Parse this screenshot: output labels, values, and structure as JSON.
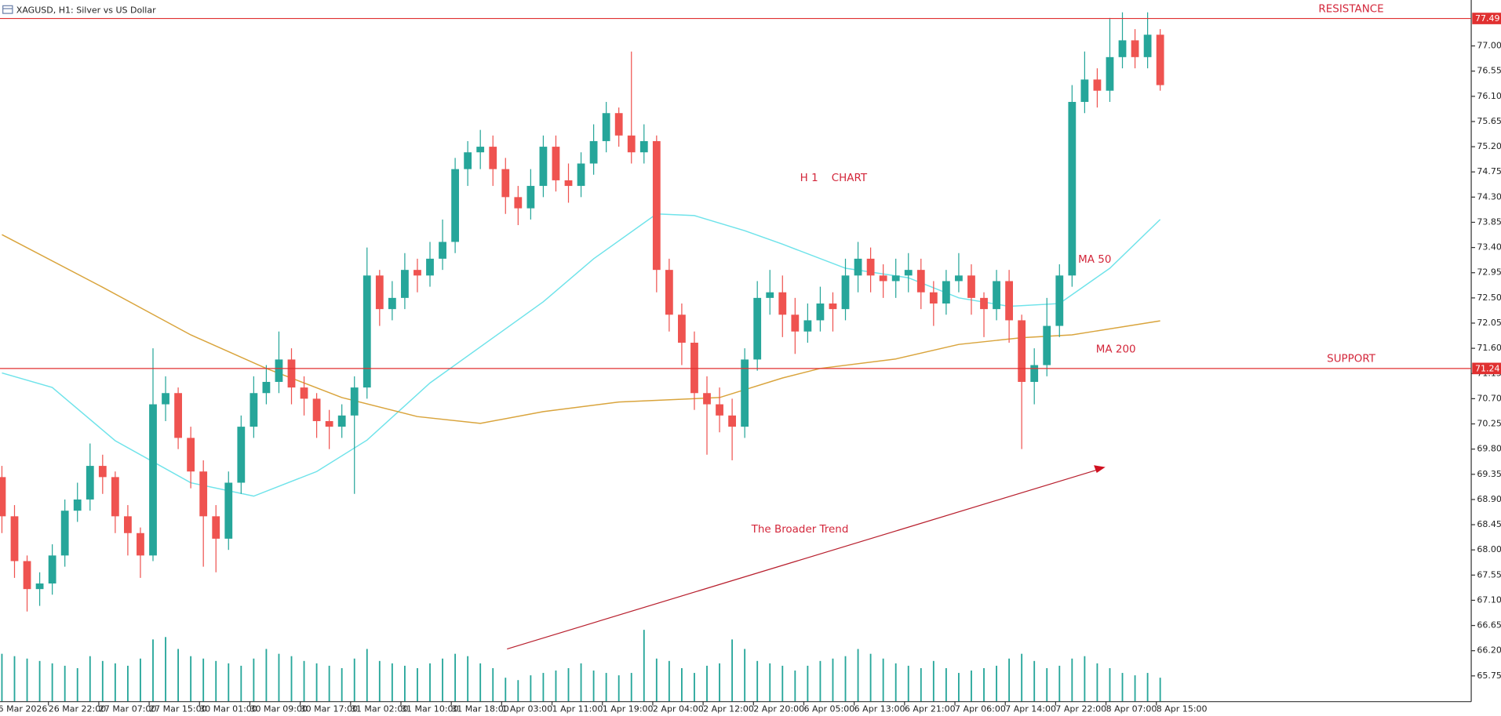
{
  "chart_data": {
    "type": "candlestick",
    "title": "XAGUSD, H1:  Silver vs US Dollar",
    "categories": [
      "6 Mar 2026",
      null,
      null,
      null,
      "26 Mar 22:00",
      null,
      null,
      null,
      "27 Mar 07:00",
      null,
      null,
      null,
      "27 Mar 15:00",
      null,
      null,
      null,
      "30 Mar 01:00",
      null,
      null,
      null,
      "30 Mar 09:00",
      null,
      null,
      null,
      "30 Mar 17:00",
      null,
      null,
      null,
      "31 Mar 02:00",
      null,
      null,
      null,
      "31 Mar 10:00",
      null,
      null,
      null,
      "31 Mar 18:00",
      null,
      null,
      null,
      "1 Apr 03:00",
      null,
      null,
      null,
      "1 Apr 11:00",
      null,
      null,
      null,
      "1 Apr 19:00",
      null,
      null,
      null,
      "2 Apr 04:00",
      null,
      null,
      null,
      "2 Apr 12:00",
      null,
      null,
      null,
      "2 Apr 20:00",
      null,
      null,
      null,
      "6 Apr 05:00",
      null,
      null,
      null,
      "6 Apr 13:00",
      null,
      null,
      null,
      "6 Apr 21:00",
      null,
      null,
      null,
      "7 Apr 06:00",
      null,
      null,
      null,
      "7 Apr 14:00",
      null,
      null,
      null,
      "7 Apr 22:00",
      null,
      null,
      null,
      "8 Apr 07:00",
      null,
      null,
      null,
      "8 Apr 15:00"
    ],
    "open": [
      69.3,
      68.6,
      67.8,
      67.3,
      67.4,
      67.9,
      68.7,
      68.9,
      69.5,
      69.3,
      68.6,
      68.3,
      67.9,
      70.6,
      70.8,
      70.0,
      69.4,
      68.6,
      68.2,
      69.2,
      70.2,
      70.8,
      71.0,
      71.4,
      70.9,
      70.7,
      70.3,
      70.2,
      70.4,
      70.9,
      72.9,
      72.3,
      72.5,
      73.0,
      72.9,
      73.2,
      73.5,
      74.8,
      75.1,
      75.2,
      74.8,
      74.3,
      74.1,
      74.5,
      75.2,
      74.6,
      74.5,
      74.9,
      75.3,
      75.8,
      75.4,
      75.1,
      75.3,
      73.0,
      72.2,
      71.7,
      70.8,
      70.6,
      70.4,
      70.2,
      71.4,
      72.5,
      72.6,
      72.2,
      71.9,
      72.1,
      72.4,
      72.3,
      72.9,
      73.2,
      72.9,
      72.8,
      72.9,
      73.0,
      72.6,
      72.4,
      72.8,
      72.9,
      72.5,
      72.3,
      72.8,
      72.1,
      71.0,
      71.3,
      72.0,
      72.9,
      76.0,
      76.4,
      76.2,
      76.8,
      77.1,
      76.8,
      77.2
    ],
    "high": [
      69.5,
      68.8,
      67.9,
      67.6,
      68.1,
      68.9,
      69.2,
      69.9,
      69.7,
      69.4,
      68.8,
      68.4,
      71.6,
      71.1,
      70.9,
      70.2,
      69.6,
      68.8,
      69.4,
      70.4,
      71.1,
      71.3,
      71.9,
      71.6,
      71.1,
      70.8,
      70.5,
      70.6,
      71.1,
      73.4,
      73.0,
      72.8,
      73.3,
      73.2,
      73.5,
      73.9,
      75.0,
      75.3,
      75.5,
      75.4,
      75.0,
      74.5,
      74.8,
      75.4,
      75.4,
      74.9,
      75.1,
      75.6,
      76.0,
      75.9,
      76.9,
      75.6,
      75.4,
      73.2,
      72.4,
      71.9,
      71.1,
      70.9,
      70.7,
      71.6,
      72.8,
      73.0,
      72.9,
      72.5,
      72.4,
      72.7,
      72.6,
      73.2,
      73.5,
      73.4,
      73.1,
      73.2,
      73.3,
      73.2,
      72.8,
      73.0,
      73.3,
      73.1,
      72.6,
      73.0,
      73.0,
      72.2,
      71.6,
      72.5,
      73.1,
      76.3,
      76.9,
      76.6,
      77.5,
      77.6,
      77.3,
      77.6,
      77.3
    ],
    "low": [
      68.3,
      67.5,
      66.9,
      67.0,
      67.2,
      67.7,
      68.5,
      68.7,
      69.0,
      68.3,
      67.9,
      67.5,
      67.8,
      70.3,
      69.8,
      69.1,
      67.7,
      67.6,
      68.0,
      69.0,
      70.0,
      70.6,
      70.8,
      70.6,
      70.4,
      70.0,
      69.8,
      70.0,
      69.0,
      70.7,
      72.0,
      72.1,
      72.3,
      72.6,
      72.7,
      73.0,
      73.3,
      74.5,
      74.8,
      74.5,
      74.0,
      73.8,
      73.9,
      74.3,
      74.4,
      74.2,
      74.3,
      74.7,
      75.1,
      75.2,
      74.9,
      74.9,
      72.6,
      71.9,
      71.3,
      70.5,
      69.7,
      70.1,
      69.6,
      70.0,
      71.2,
      72.2,
      71.8,
      71.5,
      71.7,
      71.9,
      71.9,
      72.1,
      72.6,
      72.6,
      72.5,
      72.5,
      72.6,
      72.3,
      72.0,
      72.2,
      72.6,
      72.2,
      71.8,
      72.1,
      71.7,
      69.8,
      70.6,
      71.1,
      71.8,
      72.7,
      75.8,
      75.9,
      76.0,
      76.6,
      76.6,
      76.6,
      76.2
    ],
    "close": [
      68.6,
      67.8,
      67.3,
      67.4,
      67.9,
      68.7,
      68.9,
      69.5,
      69.3,
      68.6,
      68.3,
      67.9,
      70.6,
      70.8,
      70.0,
      69.4,
      68.6,
      68.2,
      69.2,
      70.2,
      70.8,
      71.0,
      71.4,
      70.9,
      70.7,
      70.3,
      70.2,
      70.4,
      70.9,
      72.9,
      72.3,
      72.5,
      73.0,
      72.9,
      73.2,
      73.5,
      74.8,
      75.1,
      75.2,
      74.8,
      74.3,
      74.1,
      74.5,
      75.2,
      74.6,
      74.5,
      74.9,
      75.3,
      75.8,
      75.4,
      75.1,
      75.3,
      73.0,
      72.2,
      71.7,
      70.8,
      70.6,
      70.4,
      70.2,
      71.4,
      72.5,
      72.6,
      72.2,
      71.9,
      72.1,
      72.4,
      72.3,
      72.9,
      73.2,
      72.9,
      72.8,
      72.9,
      73.0,
      72.6,
      72.4,
      72.8,
      72.9,
      72.5,
      72.3,
      72.8,
      72.1,
      71.0,
      71.3,
      72.0,
      72.9,
      76.0,
      76.4,
      76.2,
      76.8,
      77.1,
      76.8,
      77.2,
      76.3
    ],
    "volume": [
      100,
      95,
      90,
      85,
      80,
      75,
      70,
      95,
      85,
      80,
      75,
      90,
      130,
      135,
      110,
      95,
      90,
      85,
      80,
      75,
      90,
      110,
      100,
      95,
      85,
      80,
      75,
      70,
      90,
      110,
      85,
      80,
      75,
      70,
      80,
      90,
      100,
      95,
      80,
      70,
      50,
      45,
      55,
      60,
      65,
      70,
      80,
      65,
      60,
      55,
      60,
      150,
      90,
      85,
      70,
      60,
      75,
      80,
      130,
      110,
      85,
      80,
      75,
      65,
      75,
      85,
      90,
      95,
      110,
      100,
      90,
      80,
      75,
      70,
      85,
      70,
      60,
      65,
      70,
      75,
      90,
      100,
      85,
      70,
      75,
      90,
      95,
      80,
      70,
      60,
      55,
      60,
      50
    ],
    "up_color": "#26a69a",
    "down_color": "#ef5350",
    "ylim": [
      65.29,
      77.82
    ],
    "yticks": [
      65.75,
      {
        "value": 66.2,
        "label": "66.20"
      },
      66.65,
      {
        "value": 67.1,
        "label": "67.10"
      },
      67.55,
      {
        "value": 68,
        "label": "68.00"
      },
      68.45,
      {
        "value": 68.9,
        "label": "68.90"
      },
      69.35,
      {
        "value": 69.8,
        "label": "69.80"
      },
      70.25,
      {
        "value": 70.7,
        "label": "70.70"
      },
      71.15,
      {
        "value": 71.6,
        "label": "71.60"
      },
      72.05,
      {
        "value": 72.5,
        "label": "72.50"
      },
      72.95,
      {
        "value": 73.4,
        "label": "73.40"
      },
      73.85,
      {
        "value": 74.3,
        "label": "74.30"
      },
      74.75,
      {
        "value": 75.2,
        "label": "75.20"
      },
      75.65,
      {
        "value": 76.1,
        "label": "76.10"
      },
      76.55,
      {
        "value": 77,
        "label": "77.00"
      }
    ],
    "levels": [
      {
        "name": "RESISTANCE",
        "value": 77.49,
        "color": "#e03030"
      },
      {
        "name": "SUPPORT",
        "value": 71.24,
        "color": "#e03030"
      }
    ],
    "ma_lines": [
      {
        "name": "MA 50",
        "color": "#6fe3ea",
        "x": [
          0,
          4,
          9,
          15,
          20,
          25,
          29,
          34,
          43,
          47,
          52,
          55,
          59,
          62,
          67,
          72,
          76,
          80,
          84,
          88,
          92
        ],
        "values": [
          71.16,
          70.9,
          69.95,
          69.2,
          68.96,
          69.4,
          69.96,
          70.98,
          72.43,
          73.2,
          74.0,
          73.97,
          73.7,
          73.46,
          73.03,
          72.86,
          72.5,
          72.35,
          72.4,
          73.03,
          73.9
        ]
      },
      {
        "name": "MA 200",
        "color": "#d9a43c",
        "x": [
          0,
          8,
          15,
          21,
          27,
          33,
          38,
          43,
          49,
          57,
          62,
          65,
          71,
          76,
          81,
          85,
          92
        ],
        "values": [
          73.63,
          72.69,
          71.84,
          71.24,
          70.72,
          70.38,
          70.26,
          70.47,
          70.64,
          70.72,
          71.07,
          71.24,
          71.41,
          71.67,
          71.79,
          71.84,
          72.09
        ]
      }
    ],
    "chart_label": "H 1    CHART",
    "trend_label": "The Broader Trend"
  }
}
